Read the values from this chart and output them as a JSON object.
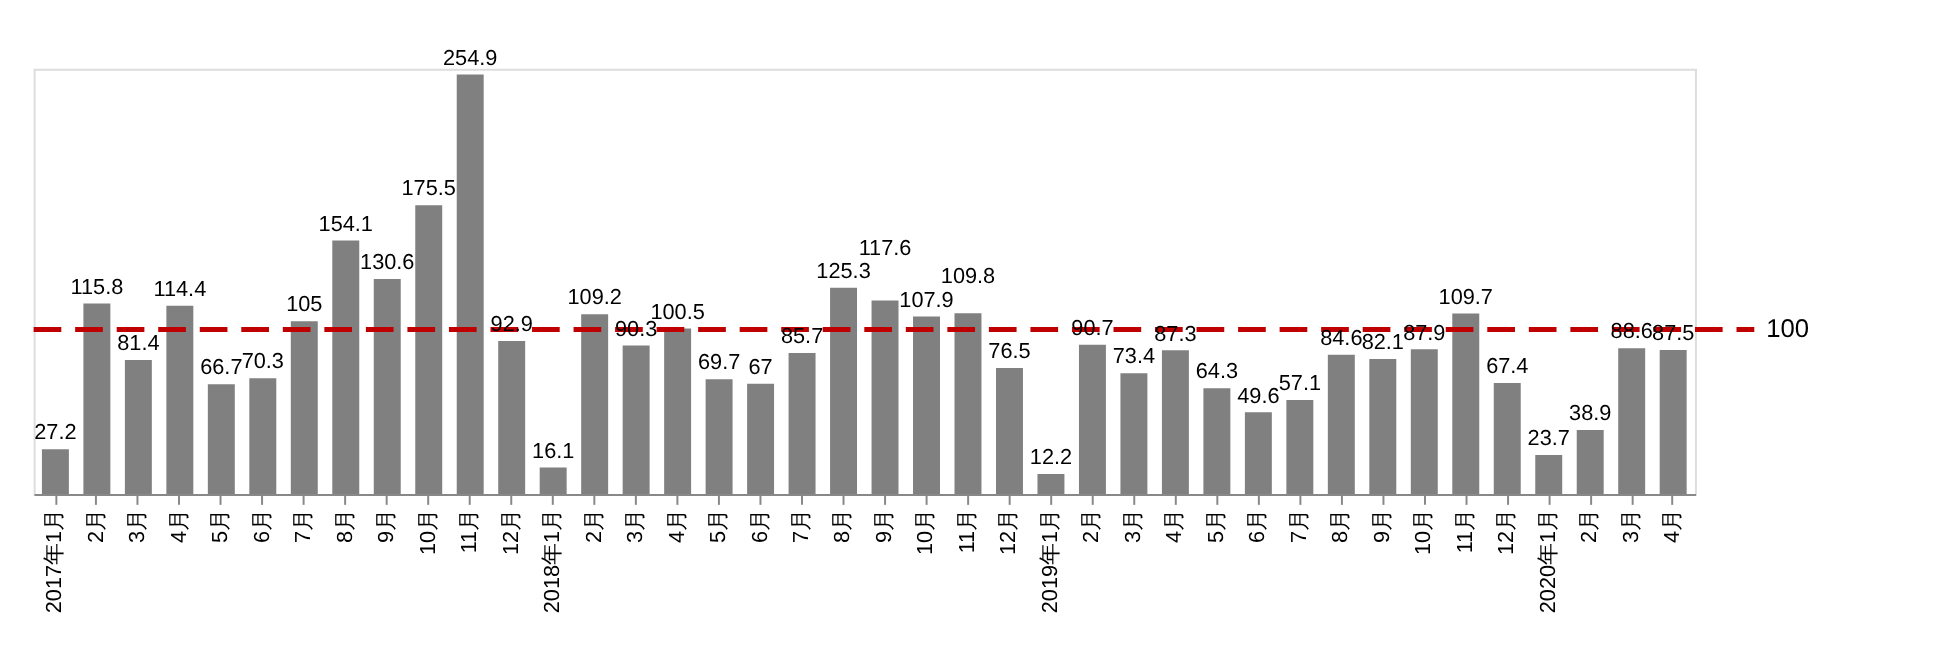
{
  "chart_data": {
    "type": "bar",
    "categories": [
      "2017年1月",
      "2月",
      "3月",
      "4月",
      "5月",
      "6月",
      "7月",
      "8月",
      "9月",
      "10月",
      "11月",
      "12月",
      "2018年1月",
      "2月",
      "3月",
      "4月",
      "5月",
      "6月",
      "7月",
      "8月",
      "9月",
      "10月",
      "11月",
      "12月",
      "2019年1月",
      "2月",
      "3月",
      "4月",
      "5月",
      "6月",
      "7月",
      "8月",
      "9月",
      "10月",
      "11月",
      "12月",
      "2020年1月",
      "2月",
      "3月",
      "4月"
    ],
    "values": [
      27.2,
      115.8,
      81.4,
      114.4,
      66.7,
      70.3,
      105,
      154.1,
      130.6,
      175.5,
      254.9,
      92.9,
      16.1,
      109.2,
      90.3,
      100.5,
      69.7,
      67,
      85.7,
      125.3,
      117.6,
      107.9,
      109.8,
      76.5,
      12.2,
      90.7,
      73.4,
      87.3,
      64.3,
      49.6,
      57.1,
      84.6,
      82.1,
      87.9,
      109.7,
      67.4,
      23.7,
      38.9,
      88.6,
      87.5
    ],
    "color": "#808080",
    "data_labels": true,
    "tick_labels": "x",
    "grid": false,
    "ref_lines": [
      {
        "axis": "y",
        "value": 100,
        "label": "100",
        "color": "#c00000",
        "line_style": "dashed"
      }
    ]
  }
}
